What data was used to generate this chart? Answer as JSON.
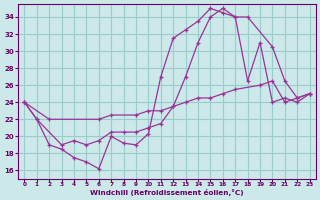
{
  "background_color": "#cce8e8",
  "line_color": "#993399",
  "grid_color": "#99cccc",
  "xlabel": "Windchill (Refroidissement éolien,°C)",
  "xlabel_color": "#660066",
  "tick_color": "#660066",
  "xlim": [
    -0.5,
    23.5
  ],
  "ylim": [
    15,
    35.5
  ],
  "yticks": [
    16,
    18,
    20,
    22,
    24,
    26,
    28,
    30,
    32,
    34
  ],
  "xticks": [
    0,
    1,
    2,
    3,
    4,
    5,
    6,
    7,
    8,
    9,
    10,
    11,
    12,
    13,
    14,
    15,
    16,
    17,
    18,
    19,
    20,
    21,
    22,
    23
  ],
  "line1_x": [
    0,
    1,
    2,
    3,
    4,
    5,
    6,
    7,
    8,
    9,
    10,
    11,
    12,
    13,
    14,
    15,
    16,
    17,
    18,
    19,
    20,
    21,
    22,
    23
  ],
  "line1_y": [
    24,
    22,
    19,
    18.5,
    17.5,
    17,
    16.2,
    20,
    19.2,
    19,
    20.3,
    27,
    31.5,
    32.5,
    33.5,
    35,
    34.5,
    34,
    26.5,
    31,
    24,
    24.5,
    24,
    25
  ],
  "line2_x": [
    0,
    2,
    6,
    7,
    9,
    10,
    11,
    12,
    13,
    14,
    15,
    16,
    17,
    19,
    20,
    21,
    22,
    23
  ],
  "line2_y": [
    24,
    22,
    22,
    22.5,
    22.5,
    23,
    23,
    23.5,
    24,
    24.5,
    24.5,
    25,
    25.5,
    26,
    26.5,
    24,
    24.5,
    25
  ],
  "line3_x": [
    0,
    1,
    3,
    4,
    5,
    6,
    7,
    8,
    9,
    10,
    11,
    12,
    13,
    14,
    15,
    16,
    17,
    18,
    20,
    21,
    22,
    23
  ],
  "line3_y": [
    24,
    22,
    19,
    19.5,
    19,
    19.5,
    20.5,
    20.5,
    20.5,
    21,
    21.5,
    23.5,
    27,
    31,
    34,
    35,
    34,
    34,
    30.5,
    26.5,
    24.5,
    25
  ]
}
